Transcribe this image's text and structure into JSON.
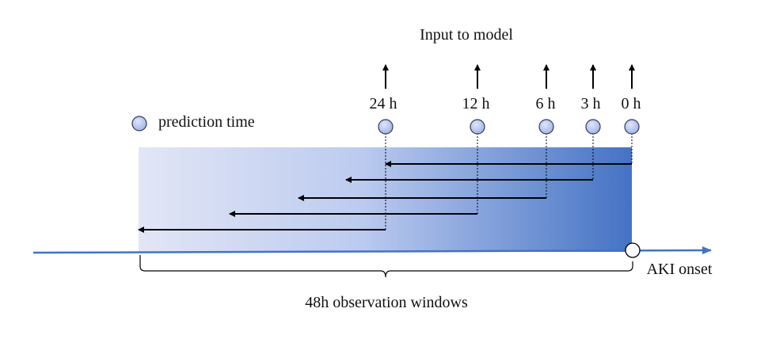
{
  "title": "Input to model",
  "legend": {
    "label": "prediction time",
    "icon": "circle-marker-icon"
  },
  "timepoints": [
    {
      "label": "24 h"
    },
    {
      "label": "12 h"
    },
    {
      "label": "6 h"
    },
    {
      "label": "3 h"
    },
    {
      "label": "0 h"
    }
  ],
  "onset_label": "AKI onset",
  "window_label": "48h observation windows",
  "colors": {
    "window_light": "#e2e6f6",
    "window_dark": "#4472c4",
    "timeline": "#4472c4",
    "marker_fill": "#b4c3eb",
    "marker_stroke": "#2f3b63",
    "arrow": "#000000"
  }
}
